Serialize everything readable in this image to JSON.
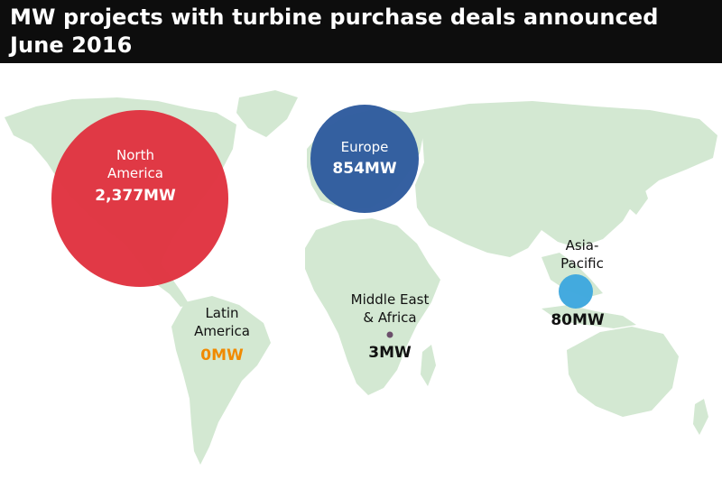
{
  "title": {
    "line1": "MW projects with turbine purchase deals announced",
    "line2": "June 2016"
  },
  "colors": {
    "land": "#d3e8d2",
    "north_america": "#e03340",
    "europe": "#2e5b9e",
    "middle_east_africa": "#6b4f6b",
    "asia_pacific": "#3ea7de",
    "latin_america_value": "#f08a00"
  },
  "regions": {
    "north_america": {
      "name_line1": "North",
      "name_line2": "America",
      "value": "2,377MW",
      "mw": 2377
    },
    "europe": {
      "name": "Europe",
      "value": "854MW",
      "mw": 854
    },
    "latin_america": {
      "name_line1": "Latin",
      "name_line2": "America",
      "value": "0MW",
      "mw": 0
    },
    "middle_east_africa": {
      "name_line1": "Middle East",
      "name_line2": "& Africa",
      "value": "3MW",
      "mw": 3
    },
    "asia_pacific": {
      "name_line1": "Asia-",
      "name_line2": "Pacific",
      "value": "80MW",
      "mw": 80
    }
  }
}
